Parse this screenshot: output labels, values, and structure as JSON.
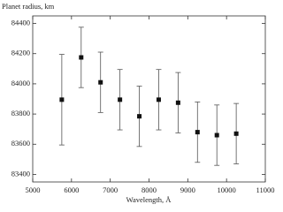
{
  "chart_data": {
    "type": "scatter",
    "y_label": "Planet radius, km",
    "x_label": "Wavelength, Å",
    "x": [
      5750,
      6250,
      6750,
      7250,
      7750,
      8250,
      8750,
      9250,
      9750,
      10250
    ],
    "values": [
      83895,
      84175,
      84010,
      83895,
      83785,
      83895,
      83875,
      83680,
      83660,
      83670
    ],
    "errors": [
      300,
      200,
      200,
      200,
      200,
      200,
      200,
      200,
      200,
      200
    ],
    "color": "#111111",
    "xlim": [
      5000,
      11000
    ],
    "xticks": [
      5000,
      6000,
      7000,
      8000,
      9000,
      10000,
      11000
    ],
    "ylim": [
      83350,
      84450
    ],
    "yticks": [
      83400,
      83600,
      83800,
      84000,
      84200,
      84400
    ]
  }
}
